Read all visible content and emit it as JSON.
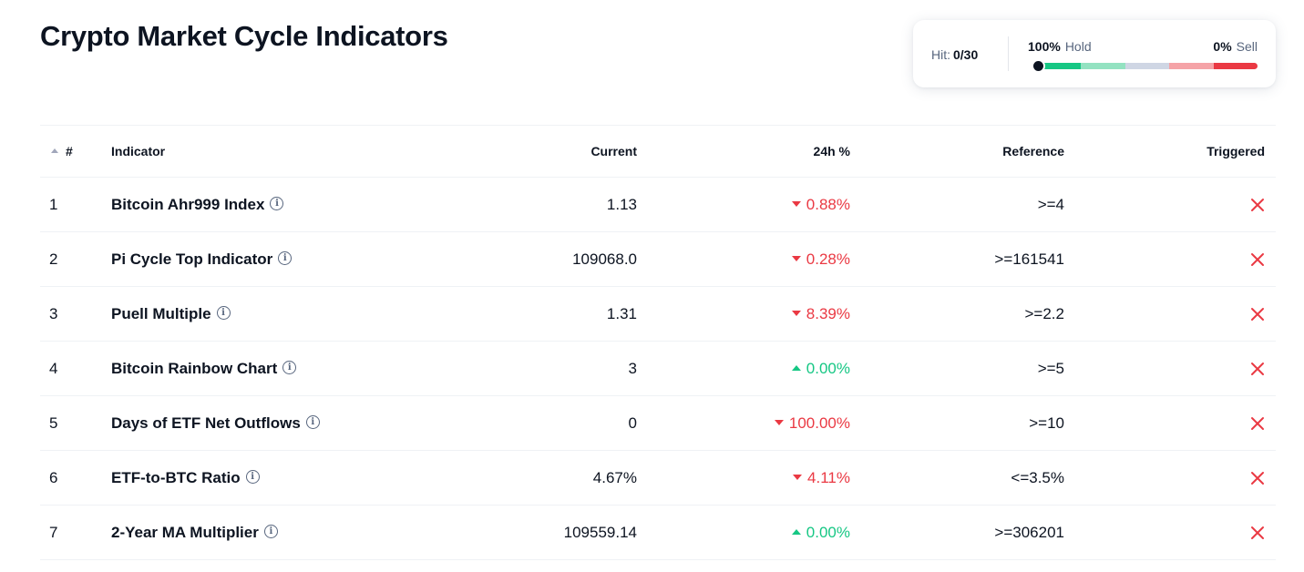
{
  "page_title": "Crypto Market Cycle Indicators",
  "hit_widget": {
    "hit_label": "Hit:",
    "hit_value": "0/30",
    "hold_pct": "100%",
    "hold_label": "Hold",
    "sell_pct": "0%",
    "sell_label": "Sell",
    "gauge_position": 0.0,
    "gauge_colors": [
      "#16c784",
      "#93e2c1",
      "#cfd6e4",
      "#f5a3a7",
      "#ea3943"
    ]
  },
  "colors": {
    "up": "#16c784",
    "down": "#ea3943"
  },
  "table": {
    "headers": {
      "num": "#",
      "indicator": "Indicator",
      "current": "Current",
      "change": "24h %",
      "reference": "Reference",
      "triggered": "Triggered"
    },
    "rows": [
      {
        "num": "1",
        "name": "Bitcoin Ahr999 Index",
        "current": "1.13",
        "change": "0.88%",
        "direction": "down",
        "reference": ">=4",
        "triggered_icon": "cross-icon"
      },
      {
        "num": "2",
        "name": "Pi Cycle Top Indicator",
        "current": "109068.0",
        "change": "0.28%",
        "direction": "down",
        "reference": ">=161541",
        "triggered_icon": "cross-icon"
      },
      {
        "num": "3",
        "name": "Puell Multiple",
        "current": "1.31",
        "change": "8.39%",
        "direction": "down",
        "reference": ">=2.2",
        "triggered_icon": "cross-icon"
      },
      {
        "num": "4",
        "name": "Bitcoin Rainbow Chart",
        "current": "3",
        "change": "0.00%",
        "direction": "up",
        "reference": ">=5",
        "triggered_icon": "cross-icon"
      },
      {
        "num": "5",
        "name": "Days of ETF Net Outflows",
        "current": "0",
        "change": "100.00%",
        "direction": "down",
        "reference": ">=10",
        "triggered_icon": "cross-icon"
      },
      {
        "num": "6",
        "name": "ETF-to-BTC Ratio",
        "current": "4.67%",
        "change": "4.11%",
        "direction": "down",
        "reference": "<=3.5%",
        "triggered_icon": "cross-icon"
      },
      {
        "num": "7",
        "name": "2-Year MA Multiplier",
        "current": "109559.14",
        "change": "0.00%",
        "direction": "up",
        "reference": ">=306201",
        "triggered_icon": "cross-icon"
      }
    ]
  }
}
